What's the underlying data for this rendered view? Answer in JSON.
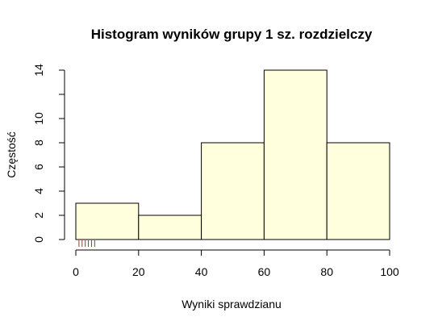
{
  "chart_data": {
    "type": "bar",
    "title": "Histogram wyników grupy 1 sz. rozdzielczy",
    "xlabel": "Wyniki sprawdzianu",
    "ylabel": "Częstość",
    "bins": [
      {
        "from": 0,
        "to": 20,
        "count": 3
      },
      {
        "from": 20,
        "to": 40,
        "count": 2
      },
      {
        "from": 40,
        "to": 60,
        "count": 8
      },
      {
        "from": 60,
        "to": 80,
        "count": 14
      },
      {
        "from": 80,
        "to": 100,
        "count": 8
      }
    ],
    "xlim": [
      0,
      100
    ],
    "ylim": [
      0,
      14
    ],
    "x_ticks": [
      0,
      20,
      40,
      60,
      80,
      100
    ],
    "y_ticks": [
      0,
      2,
      4,
      6,
      8,
      10,
      14
    ],
    "rug": [
      1,
      2,
      3,
      4,
      5,
      6
    ],
    "bar_color": "#FFFFDD",
    "rug_color": "#CC2222",
    "grid": false
  }
}
